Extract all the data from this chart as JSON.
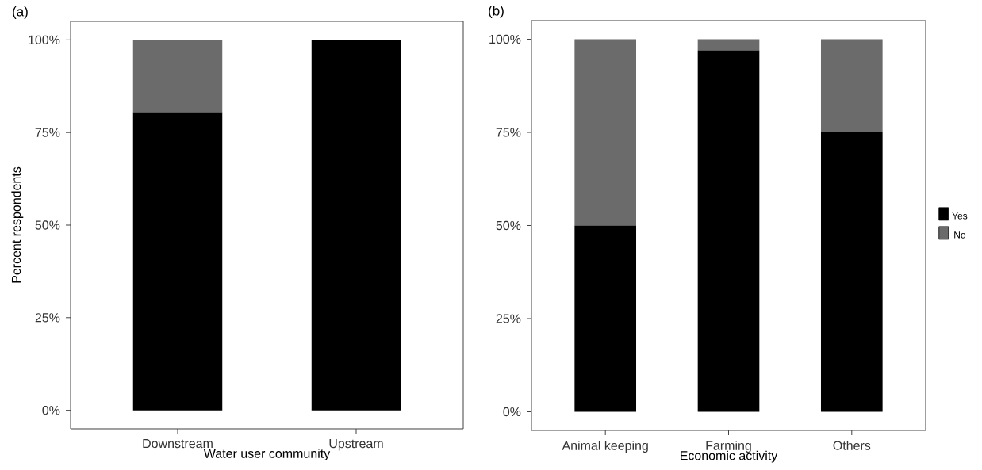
{
  "chart_data": [
    {
      "type": "bar",
      "title": "(a)",
      "xlabel": "Water user community",
      "ylabel": "Percent respondents",
      "stacked": true,
      "categories": [
        "Downstream",
        "Upstream"
      ],
      "series": [
        {
          "color": "#000000",
          "values": [
            80.5,
            100
          ]
        },
        {
          "color": "#6b6b6b",
          "values": [
            19.5,
            0
          ]
        }
      ],
      "ylim": [
        -5,
        105
      ],
      "yticks": [
        {
          "value": 0,
          "label": "0%"
        },
        {
          "value": 25,
          "label": "25%"
        },
        {
          "value": 50,
          "label": "50%"
        },
        {
          "value": 75,
          "label": "75%"
        },
        {
          "value": 100,
          "label": "100%"
        }
      ],
      "grid": false,
      "legend": false
    },
    {
      "type": "bar",
      "title": "(b)",
      "xlabel": "Economic activity",
      "stacked": true,
      "categories": [
        "Animal keeping",
        "Farming",
        "Others"
      ],
      "series": [
        {
          "name": "Yes",
          "color": "#000000",
          "values": [
            50,
            97,
            75
          ]
        },
        {
          "name": "No",
          "color": "#6b6b6b",
          "values": [
            50,
            3,
            25
          ]
        }
      ],
      "ylim": [
        -5,
        105
      ],
      "yticks": [
        {
          "value": 0,
          "label": "0%"
        },
        {
          "value": 25,
          "label": "25%"
        },
        {
          "value": 50,
          "label": "50%"
        },
        {
          "value": 75,
          "label": "75%"
        },
        {
          "value": 100,
          "label": "100%"
        }
      ],
      "grid": false,
      "legend": "right"
    }
  ]
}
